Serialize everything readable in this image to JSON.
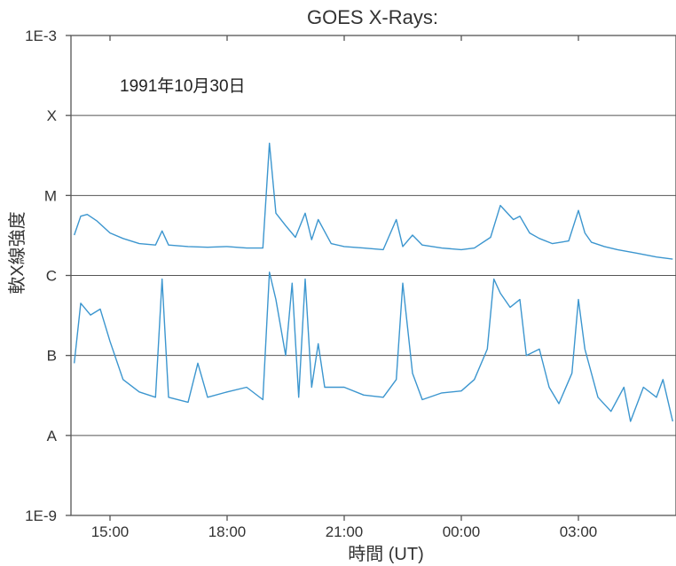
{
  "chart_data": {
    "type": "line",
    "title": "GOES X-Rays:",
    "xlabel": "時間 (UT)",
    "ylabel": "軟X線強度",
    "annotation": "1991年10月30日",
    "y_scale": "log",
    "ylim": [
      1e-09,
      0.001
    ],
    "y_ticks": [
      {
        "label": "1E-9",
        "value": 1e-09,
        "line": false
      },
      {
        "label": "A",
        "value": 1e-08,
        "line": true
      },
      {
        "label": "B",
        "value": 1e-07,
        "line": true
      },
      {
        "label": "C",
        "value": 1e-06,
        "line": true
      },
      {
        "label": "M",
        "value": 1e-05,
        "line": true
      },
      {
        "label": "X",
        "value": 0.0001,
        "line": true
      },
      {
        "label": "1E-3",
        "value": 0.001,
        "line": false
      }
    ],
    "xlim": [
      "1991-10-30 14:00",
      "1991-10-31 05:30"
    ],
    "x_ticks": [
      "15:00",
      "18:00",
      "21:00",
      "00:00",
      "03:00"
    ],
    "x_tick_times": [
      "1991-10-30 15:00",
      "1991-10-30 18:00",
      "1991-10-30 21:00",
      "1991-10-31 00:00",
      "1991-10-31 03:00"
    ],
    "line_color": "#3c96cf",
    "grid_color": "#555555",
    "series": [
      {
        "x": [
          "1991-10-30 14:05",
          "1991-10-30 14:15",
          "1991-10-30 14:25",
          "1991-10-30 14:40",
          "1991-10-30 15:00",
          "1991-10-30 15:20",
          "1991-10-30 15:45",
          "1991-10-30 16:10",
          "1991-10-30 16:20",
          "1991-10-30 16:30",
          "1991-10-30 17:00",
          "1991-10-30 17:30",
          "1991-10-30 18:00",
          "1991-10-30 18:30",
          "1991-10-30 18:55",
          "1991-10-30 19:05",
          "1991-10-30 19:15",
          "1991-10-30 19:30",
          "1991-10-30 19:45",
          "1991-10-30 20:00",
          "1991-10-30 20:10",
          "1991-10-30 20:20",
          "1991-10-30 20:40",
          "1991-10-30 21:00",
          "1991-10-30 21:30",
          "1991-10-30 22:00",
          "1991-10-30 22:20",
          "1991-10-30 22:30",
          "1991-10-30 22:45",
          "1991-10-30 23:00",
          "1991-10-30 23:30",
          "1991-10-31 00:00",
          "1991-10-31 00:20",
          "1991-10-31 00:45",
          "1991-10-31 01:00",
          "1991-10-31 01:20",
          "1991-10-31 01:30",
          "1991-10-31 01:45",
          "1991-10-31 02:00",
          "1991-10-31 02:20",
          "1991-10-31 02:45",
          "1991-10-31 03:00",
          "1991-10-31 03:10",
          "1991-10-31 03:20",
          "1991-10-31 03:40",
          "1991-10-31 04:00",
          "1991-10-31 04:30",
          "1991-10-31 05:00",
          "1991-10-31 05:25"
        ],
        "values": [
          3.2e-06,
          5.5e-06,
          5.8e-06,
          4.8e-06,
          3.4e-06,
          2.9e-06,
          2.5e-06,
          2.4e-06,
          3.6e-06,
          2.4e-06,
          2.3e-06,
          2.25e-06,
          2.3e-06,
          2.2e-06,
          2.2e-06,
          4.5e-05,
          6e-06,
          4.2e-06,
          3e-06,
          6e-06,
          2.8e-06,
          5e-06,
          2.5e-06,
          2.3e-06,
          2.2e-06,
          2.1e-06,
          5e-06,
          2.3e-06,
          3.2e-06,
          2.4e-06,
          2.2e-06,
          2.1e-06,
          2.2e-06,
          3e-06,
          7.5e-06,
          5e-06,
          5.5e-06,
          3.4e-06,
          2.9e-06,
          2.5e-06,
          2.7e-06,
          6.5e-06,
          3.4e-06,
          2.6e-06,
          2.3e-06,
          2.1e-06,
          1.9e-06,
          1.7e-06,
          1.6e-06
        ]
      },
      {
        "x": [
          "1991-10-30 14:05",
          "1991-10-30 14:15",
          "1991-10-30 14:30",
          "1991-10-30 14:45",
          "1991-10-30 15:00",
          "1991-10-30 15:20",
          "1991-10-30 15:45",
          "1991-10-30 16:10",
          "1991-10-30 16:20",
          "1991-10-30 16:30",
          "1991-10-30 17:00",
          "1991-10-30 17:15",
          "1991-10-30 17:30",
          "1991-10-30 18:00",
          "1991-10-30 18:30",
          "1991-10-30 18:55",
          "1991-10-30 19:05",
          "1991-10-30 19:15",
          "1991-10-30 19:30",
          "1991-10-30 19:40",
          "1991-10-30 19:50",
          "1991-10-30 20:00",
          "1991-10-30 20:10",
          "1991-10-30 20:20",
          "1991-10-30 20:30",
          "1991-10-30 21:00",
          "1991-10-30 21:30",
          "1991-10-30 22:00",
          "1991-10-30 22:20",
          "1991-10-30 22:30",
          "1991-10-30 22:45",
          "1991-10-30 23:00",
          "1991-10-30 23:30",
          "1991-10-31 00:00",
          "1991-10-31 00:20",
          "1991-10-31 00:40",
          "1991-10-31 00:50",
          "1991-10-31 01:00",
          "1991-10-31 01:15",
          "1991-10-31 01:30",
          "1991-10-31 01:40",
          "1991-10-31 02:00",
          "1991-10-31 02:15",
          "1991-10-31 02:30",
          "1991-10-31 02:50",
          "1991-10-31 03:00",
          "1991-10-31 03:10",
          "1991-10-31 03:30",
          "1991-10-31 03:50",
          "1991-10-31 04:10",
          "1991-10-31 04:20",
          "1991-10-31 04:40",
          "1991-10-31 05:00",
          "1991-10-31 05:10",
          "1991-10-31 05:25"
        ],
        "values": [
          8e-08,
          4.5e-07,
          3.2e-07,
          3.8e-07,
          1.5e-07,
          5e-08,
          3.5e-08,
          3e-08,
          9e-07,
          3e-08,
          2.6e-08,
          8e-08,
          3e-08,
          3.5e-08,
          4e-08,
          2.8e-08,
          1.1e-06,
          5e-07,
          1e-07,
          8e-07,
          3e-08,
          9e-07,
          4e-08,
          1.4e-07,
          4e-08,
          4e-08,
          3.2e-08,
          3e-08,
          5e-08,
          8e-07,
          6e-08,
          2.8e-08,
          3.4e-08,
          3.6e-08,
          5e-08,
          1.2e-07,
          9e-07,
          6e-07,
          4e-07,
          5e-07,
          1e-07,
          1.2e-07,
          4e-08,
          2.5e-08,
          6e-08,
          5e-07,
          1.2e-07,
          3e-08,
          2e-08,
          4e-08,
          1.5e-08,
          4e-08,
          3e-08,
          5e-08,
          1.5e-08
        ]
      }
    ]
  }
}
